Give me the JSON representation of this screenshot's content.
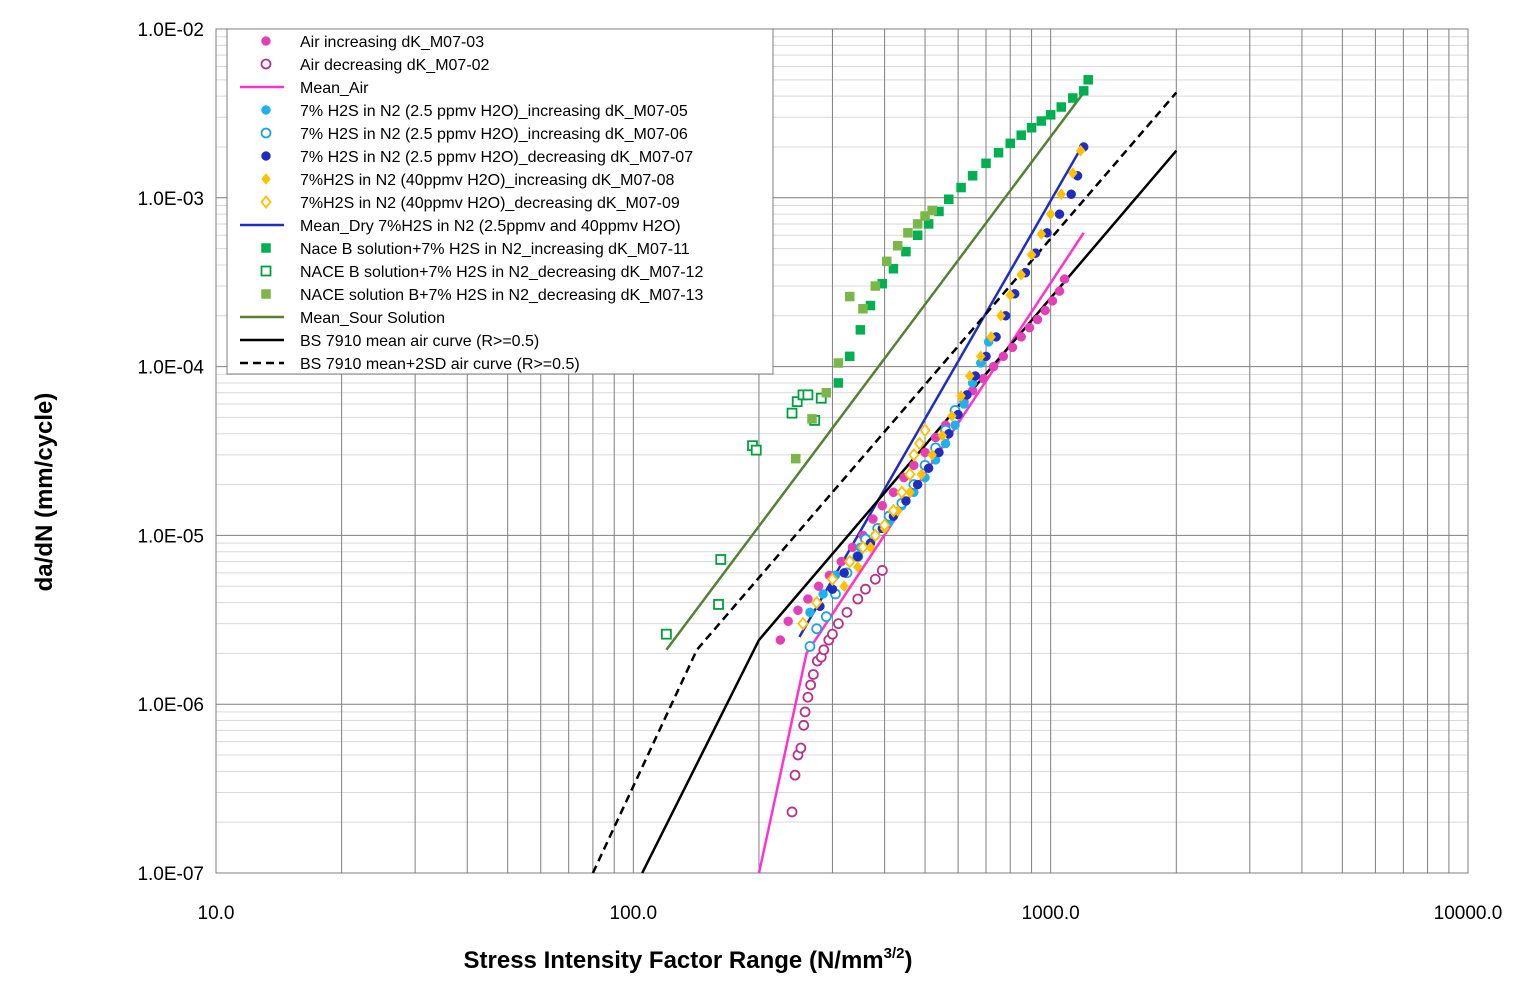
{
  "chart_data": {
    "type": "scatter",
    "xscale": "log",
    "yscale": "log",
    "xlim": [
      10,
      10000
    ],
    "ylim": [
      1e-07,
      0.01
    ],
    "grid": true,
    "legend_placement": "top-left",
    "xlabel": "Stress Intensity Factor Range (N/mm",
    "xlabel_sup": "3/2",
    "xlabel_close": ")",
    "ylabel": "da/dN (mm/cycle)",
    "x_ticks": [
      {
        "value": 10,
        "label": "10.0"
      },
      {
        "value": 100,
        "label": "100.0"
      },
      {
        "value": 1000,
        "label": "1000.0"
      },
      {
        "value": 10000,
        "label": "10000.0"
      }
    ],
    "y_ticks": [
      {
        "value": 1e-07,
        "label": "1.0E-07"
      },
      {
        "value": 1e-06,
        "label": "1.0E-06"
      },
      {
        "value": 1e-05,
        "label": "1.0E-05"
      },
      {
        "value": 0.0001,
        "label": "1.0E-04"
      },
      {
        "value": 0.001,
        "label": "1.0E-03"
      },
      {
        "value": 0.01,
        "label": "1.0E-02"
      }
    ],
    "series": [
      {
        "name": "Air increasing dK_M07-03",
        "kind": "scatter",
        "marker": "circle",
        "filled": true,
        "color": "#E53FB8",
        "points": [
          [
            225,
            2.4e-06
          ],
          [
            235,
            3.1e-06
          ],
          [
            248,
            3.6e-06
          ],
          [
            262,
            4.2e-06
          ],
          [
            278,
            5e-06
          ],
          [
            295,
            5.8e-06
          ],
          [
            315,
            7e-06
          ],
          [
            335,
            8.5e-06
          ],
          [
            355,
            1e-05
          ],
          [
            375,
            1.25e-05
          ],
          [
            395,
            1.5e-05
          ],
          [
            420,
            1.8e-05
          ],
          [
            445,
            2.2e-05
          ],
          [
            470,
            2.6e-05
          ],
          [
            500,
            3.1e-05
          ],
          [
            530,
            3.8e-05
          ],
          [
            560,
            4.5e-05
          ],
          [
            590,
            5.3e-05
          ],
          [
            620,
            6.2e-05
          ],
          [
            650,
            7.2e-05
          ],
          [
            690,
            8.5e-05
          ],
          [
            730,
            0.0001
          ],
          [
            770,
            0.000115
          ],
          [
            810,
            0.00013
          ],
          [
            850,
            0.00015
          ],
          [
            890,
            0.00017
          ],
          [
            930,
            0.00019
          ],
          [
            970,
            0.000215
          ],
          [
            1010,
            0.000245
          ],
          [
            1050,
            0.00028
          ],
          [
            1080,
            0.00033
          ]
        ]
      },
      {
        "name": "Air decreasing dK_M07-02",
        "kind": "scatter",
        "marker": "circle",
        "filled": false,
        "color": "#B5338A",
        "points": [
          [
            240,
            2.3e-07
          ],
          [
            244,
            3.8e-07
          ],
          [
            248,
            5e-07
          ],
          [
            252,
            5.5e-07
          ],
          [
            256,
            7.5e-07
          ],
          [
            258,
            9e-07
          ],
          [
            262,
            1.1e-06
          ],
          [
            266,
            1.3e-06
          ],
          [
            270,
            1.5e-06
          ],
          [
            276,
            1.8e-06
          ],
          [
            282,
            1.9e-06
          ],
          [
            286,
            2.1e-06
          ],
          [
            294,
            2.4e-06
          ],
          [
            300,
            2.6e-06
          ],
          [
            310,
            3e-06
          ],
          [
            325,
            3.5e-06
          ],
          [
            345,
            4.2e-06
          ],
          [
            360,
            4.8e-06
          ],
          [
            380,
            5.5e-06
          ],
          [
            395,
            6.2e-06
          ]
        ]
      },
      {
        "name": "Mean_Air",
        "kind": "line",
        "color": "#FF33CC",
        "dash": false,
        "points": [
          [
            200,
            1e-07
          ],
          [
            260,
            2e-06
          ],
          [
            1200,
            0.00062
          ]
        ]
      },
      {
        "name": "7% H2S in N2 (2.5 ppmv H2O)_increasing dK_M07-05",
        "kind": "scatter",
        "marker": "circle",
        "filled": true,
        "color": "#1FB0EE",
        "points": [
          [
            265,
            3.5e-06
          ],
          [
            285,
            4.5e-06
          ],
          [
            305,
            5.8e-06
          ],
          [
            330,
            7e-06
          ],
          [
            350,
            8.5e-06
          ],
          [
            380,
            1e-05
          ],
          [
            410,
            1.2e-05
          ],
          [
            440,
            1.5e-05
          ],
          [
            470,
            1.8e-05
          ],
          [
            500,
            2.2e-05
          ],
          [
            530,
            2.8e-05
          ],
          [
            560,
            3.5e-05
          ],
          [
            590,
            4.5e-05
          ],
          [
            620,
            6e-05
          ],
          [
            650,
            8e-05
          ],
          [
            680,
            0.000105
          ],
          [
            710,
            0.00014
          ]
        ]
      },
      {
        "name": "7% H2S in N2 (2.5 ppmv H2O)_increasing dK_M07-06",
        "kind": "scatter",
        "marker": "circle",
        "filled": false,
        "color": "#1FA3E0",
        "points": [
          [
            265,
            2.2e-06
          ],
          [
            275,
            2.8e-06
          ],
          [
            290,
            3.3e-06
          ],
          [
            305,
            4.5e-06
          ],
          [
            325,
            6e-06
          ],
          [
            345,
            7.5e-06
          ],
          [
            360,
            9.5e-06
          ],
          [
            385,
            1.1e-05
          ],
          [
            410,
            1.3e-05
          ],
          [
            440,
            1.55e-05
          ],
          [
            470,
            2e-05
          ],
          [
            500,
            2.6e-05
          ],
          [
            530,
            3.3e-05
          ],
          [
            560,
            4.2e-05
          ],
          [
            590,
            5.5e-05
          ]
        ]
      },
      {
        "name": "7% H2S in N2 (2.5 ppmv H2O)_decreasing dK_M07-07",
        "kind": "scatter",
        "marker": "circle",
        "filled": true,
        "color": "#1F2EC0",
        "points": [
          [
            280,
            3.8e-06
          ],
          [
            300,
            4.8e-06
          ],
          [
            320,
            6e-06
          ],
          [
            345,
            7.5e-06
          ],
          [
            370,
            9e-06
          ],
          [
            395,
            1.1e-05
          ],
          [
            420,
            1.3e-05
          ],
          [
            450,
            1.6e-05
          ],
          [
            480,
            2e-05
          ],
          [
            510,
            2.5e-05
          ],
          [
            540,
            3.1e-05
          ],
          [
            570,
            4e-05
          ],
          [
            600,
            5.2e-05
          ],
          [
            630,
            6.8e-05
          ],
          [
            660,
            8.8e-05
          ],
          [
            700,
            0.000115
          ],
          [
            740,
            0.00015
          ],
          [
            780,
            0.0002
          ],
          [
            820,
            0.00027
          ],
          [
            870,
            0.00036
          ],
          [
            920,
            0.00047
          ],
          [
            980,
            0.00062
          ],
          [
            1050,
            0.0008
          ],
          [
            1120,
            0.00105
          ],
          [
            1160,
            0.00135
          ],
          [
            1200,
            0.002
          ]
        ]
      },
      {
        "name": "7%H2S in N2 (40ppmv H2O)_increasing dK_M07-08",
        "kind": "scatter",
        "marker": "diamond",
        "filled": true,
        "color": "#FFC000",
        "points": [
          [
            320,
            5e-06
          ],
          [
            345,
            6.5e-06
          ],
          [
            370,
            8.5e-06
          ],
          [
            400,
            1.1e-05
          ],
          [
            430,
            1.4e-05
          ],
          [
            460,
            1.8e-05
          ],
          [
            490,
            2.3e-05
          ],
          [
            520,
            3e-05
          ],
          [
            550,
            3.9e-05
          ],
          [
            580,
            5.1e-05
          ],
          [
            610,
            6.7e-05
          ],
          [
            640,
            8.8e-05
          ],
          [
            680,
            0.000115
          ],
          [
            720,
            0.00015
          ],
          [
            760,
            0.0002
          ],
          [
            800,
            0.000265
          ],
          [
            850,
            0.00035
          ],
          [
            900,
            0.00046
          ],
          [
            950,
            0.00061
          ],
          [
            1000,
            0.0008
          ],
          [
            1060,
            0.00105
          ],
          [
            1130,
            0.0014
          ],
          [
            1180,
            0.0019
          ]
        ]
      },
      {
        "name": "7%H2S in N2 (40ppmv H2O)_decreasing dK_M07-09",
        "kind": "scatter",
        "marker": "diamond",
        "filled": false,
        "color": "#FFC000",
        "points": [
          [
            255,
            3e-06
          ],
          [
            275,
            4e-06
          ],
          [
            300,
            5.5e-06
          ],
          [
            330,
            7e-06
          ],
          [
            355,
            8.5e-06
          ],
          [
            380,
            1e-05
          ],
          [
            400,
            1.15e-05
          ],
          [
            420,
            1.4e-05
          ],
          [
            440,
            1.8e-05
          ],
          [
            460,
            2.3e-05
          ],
          [
            470,
            3e-05
          ],
          [
            485,
            3.5e-05
          ],
          [
            500,
            4.2e-05
          ]
        ]
      },
      {
        "name": "Mean_Dry 7%H2S in N2 (2.5ppmv and 40ppmv H2O)",
        "kind": "line",
        "color": "#1F2EC0",
        "dash": false,
        "points": [
          [
            250,
            2.5e-06
          ],
          [
            1200,
            0.0021
          ]
        ]
      },
      {
        "name": "Nace B solution+7% H2S in N2_increasing dK_M07-11",
        "kind": "scatter",
        "marker": "square",
        "filled": true,
        "color": "#00B050",
        "points": [
          [
            310,
            8e-05
          ],
          [
            330,
            0.000115
          ],
          [
            350,
            0.000165
          ],
          [
            370,
            0.00023
          ],
          [
            395,
            0.00031
          ],
          [
            420,
            0.00038
          ],
          [
            450,
            0.00048
          ],
          [
            480,
            0.0006
          ],
          [
            510,
            0.0007
          ],
          [
            540,
            0.00083
          ],
          [
            570,
            0.00098
          ],
          [
            610,
            0.00115
          ],
          [
            650,
            0.00135
          ],
          [
            700,
            0.0016
          ],
          [
            750,
            0.00185
          ],
          [
            800,
            0.0021
          ],
          [
            850,
            0.00235
          ],
          [
            900,
            0.0026
          ],
          [
            950,
            0.00285
          ],
          [
            1000,
            0.0031
          ],
          [
            1060,
            0.00345
          ],
          [
            1130,
            0.0039
          ],
          [
            1200,
            0.0043
          ],
          [
            1230,
            0.005
          ]
        ]
      },
      {
        "name": "NACE B solution+7% H2S in N2_decreasing dK_M07-12",
        "kind": "scatter",
        "marker": "square",
        "filled": false,
        "color": "#00A040",
        "points": [
          [
            120,
            2.6e-06
          ],
          [
            160,
            3.9e-06
          ],
          [
            162,
            7.2e-06
          ],
          [
            193,
            3.4e-05
          ],
          [
            197,
            3.2e-05
          ],
          [
            240,
            5.3e-05
          ],
          [
            247,
            6.2e-05
          ],
          [
            255,
            6.8e-05
          ],
          [
            262,
            6.8e-05
          ],
          [
            272,
            4.8e-05
          ],
          [
            282,
            6.5e-05
          ]
        ]
      },
      {
        "name": "NACE solution B+7% H2S in N2_decreasing dK_M07-13",
        "kind": "scatter",
        "marker": "square",
        "filled": true,
        "color": "#7AB648",
        "points": [
          [
            245,
            2.85e-05
          ],
          [
            268,
            4.9e-05
          ],
          [
            290,
            7e-05
          ],
          [
            310,
            0.000105
          ],
          [
            330,
            0.00026
          ],
          [
            355,
            0.00022
          ],
          [
            380,
            0.0003
          ],
          [
            405,
            0.00042
          ],
          [
            430,
            0.00052
          ],
          [
            455,
            0.00062
          ],
          [
            480,
            0.0007
          ],
          [
            500,
            0.00078
          ],
          [
            520,
            0.00084
          ]
        ]
      },
      {
        "name": "Mean_Sour Solution",
        "kind": "line",
        "color": "#548235",
        "dash": false,
        "points": [
          [
            120,
            2.1e-06
          ],
          [
            1200,
            0.0042
          ]
        ]
      },
      {
        "name": "BS 7910 mean air curve (R>=0.5)",
        "kind": "line",
        "color": "#000000",
        "dash": false,
        "points": [
          [
            105,
            1e-07
          ],
          [
            200,
            2.4e-06
          ],
          [
            2000,
            0.0019
          ]
        ]
      },
      {
        "name": "BS 7910 mean+2SD air curve (R>=0.5)",
        "kind": "line",
        "color": "#000000",
        "dash": true,
        "points": [
          [
            80,
            1e-07
          ],
          [
            142,
            2.1e-06
          ],
          [
            2000,
            0.0042
          ]
        ]
      }
    ]
  }
}
